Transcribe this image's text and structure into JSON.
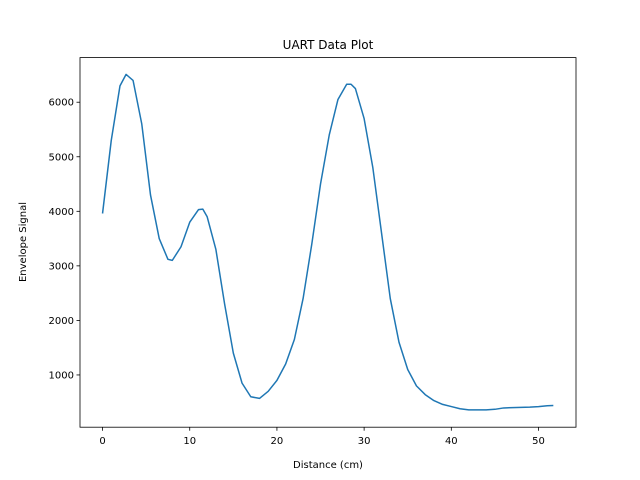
{
  "chart_data": {
    "type": "line",
    "title": "UART Data Plot",
    "xlabel": "Distance (cm)",
    "ylabel": "Envelope Signal",
    "x": [
      0,
      1,
      2,
      2.7,
      3.5,
      4.5,
      5.5,
      6.5,
      7.5,
      8,
      9,
      10,
      11,
      11.5,
      12,
      13,
      14,
      15,
      16,
      17,
      18,
      19,
      20,
      21,
      22,
      23,
      24,
      25,
      26,
      27,
      28,
      28.5,
      29,
      30,
      31,
      32,
      33,
      34,
      35,
      36,
      37,
      38,
      39,
      40,
      41,
      42,
      43,
      44,
      45,
      46,
      47,
      48,
      49,
      50,
      51,
      51.7
    ],
    "series": [
      {
        "color": "#1f77b4",
        "values": [
          3960,
          5300,
          6300,
          6510,
          6400,
          5600,
          4300,
          3500,
          3120,
          3100,
          3350,
          3800,
          4030,
          4040,
          3900,
          3300,
          2300,
          1400,
          850,
          600,
          570,
          700,
          900,
          1200,
          1650,
          2400,
          3400,
          4500,
          5400,
          6050,
          6330,
          6330,
          6250,
          5700,
          4800,
          3600,
          2400,
          1600,
          1100,
          800,
          640,
          530,
          460,
          420,
          380,
          360,
          360,
          360,
          370,
          395,
          400,
          405,
          410,
          420,
          435,
          440
        ]
      }
    ],
    "xlim": [
      -2.585,
      54.3
    ],
    "xticks": [
      0,
      10,
      20,
      30,
      40,
      50
    ],
    "ylim": [
      42,
      6818
    ],
    "yticks": [
      1000,
      2000,
      3000,
      4000,
      5000,
      6000
    ]
  }
}
